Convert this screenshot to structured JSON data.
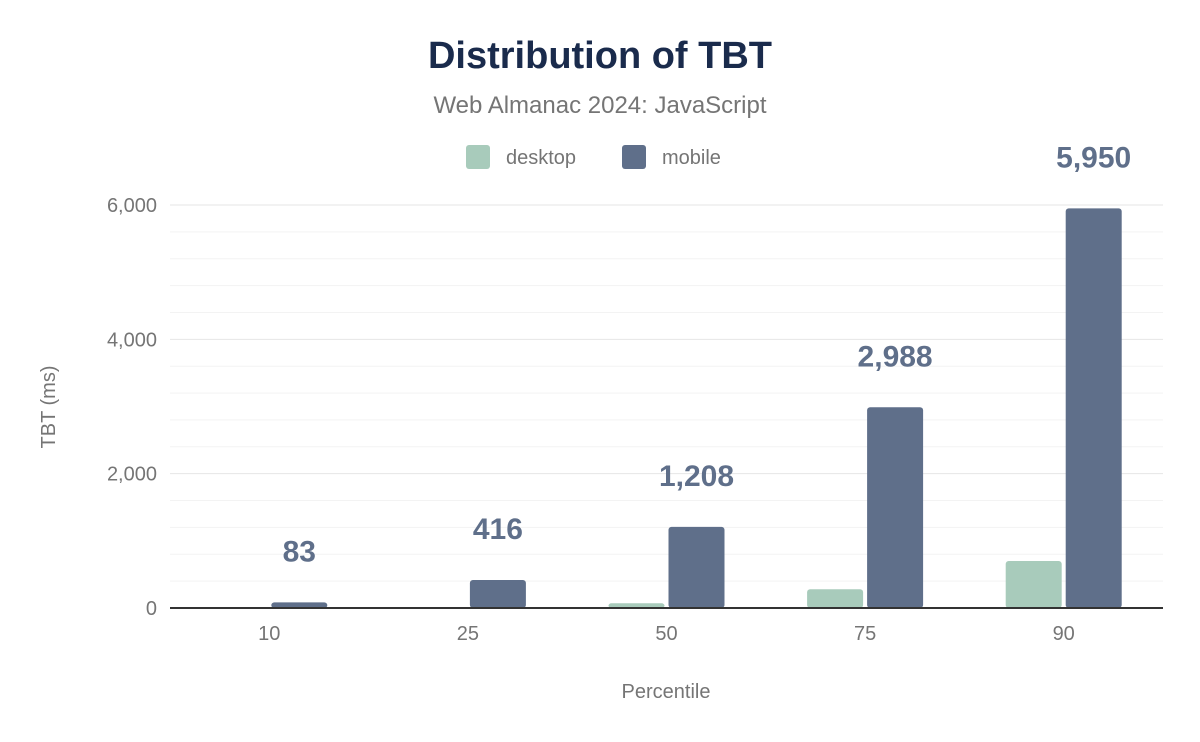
{
  "chart_data": {
    "type": "bar",
    "title": "Distribution of TBT",
    "subtitle": "Web Almanac 2024: JavaScript",
    "xlabel": "Percentile",
    "ylabel": "TBT (ms)",
    "categories": [
      "10",
      "25",
      "50",
      "75",
      "90"
    ],
    "series": [
      {
        "name": "desktop",
        "color": "#a8cbbb",
        "values": [
          0,
          0,
          70,
          280,
          700
        ],
        "labels": [
          "",
          "",
          "",
          "",
          ""
        ]
      },
      {
        "name": "mobile",
        "color": "#5f6f8a",
        "values": [
          83,
          416,
          1208,
          2988,
          5950
        ],
        "labels": [
          "83",
          "416",
          "1,208",
          "2,988",
          "5,950"
        ]
      }
    ],
    "ylim": [
      0,
      6000
    ],
    "yticks": [
      {
        "v": 0,
        "label": "0"
      },
      {
        "v": 2000,
        "label": "2,000"
      },
      {
        "v": 4000,
        "label": "4,000"
      },
      {
        "v": 6000,
        "label": "6,000"
      }
    ],
    "grid": true,
    "legend": "top"
  }
}
